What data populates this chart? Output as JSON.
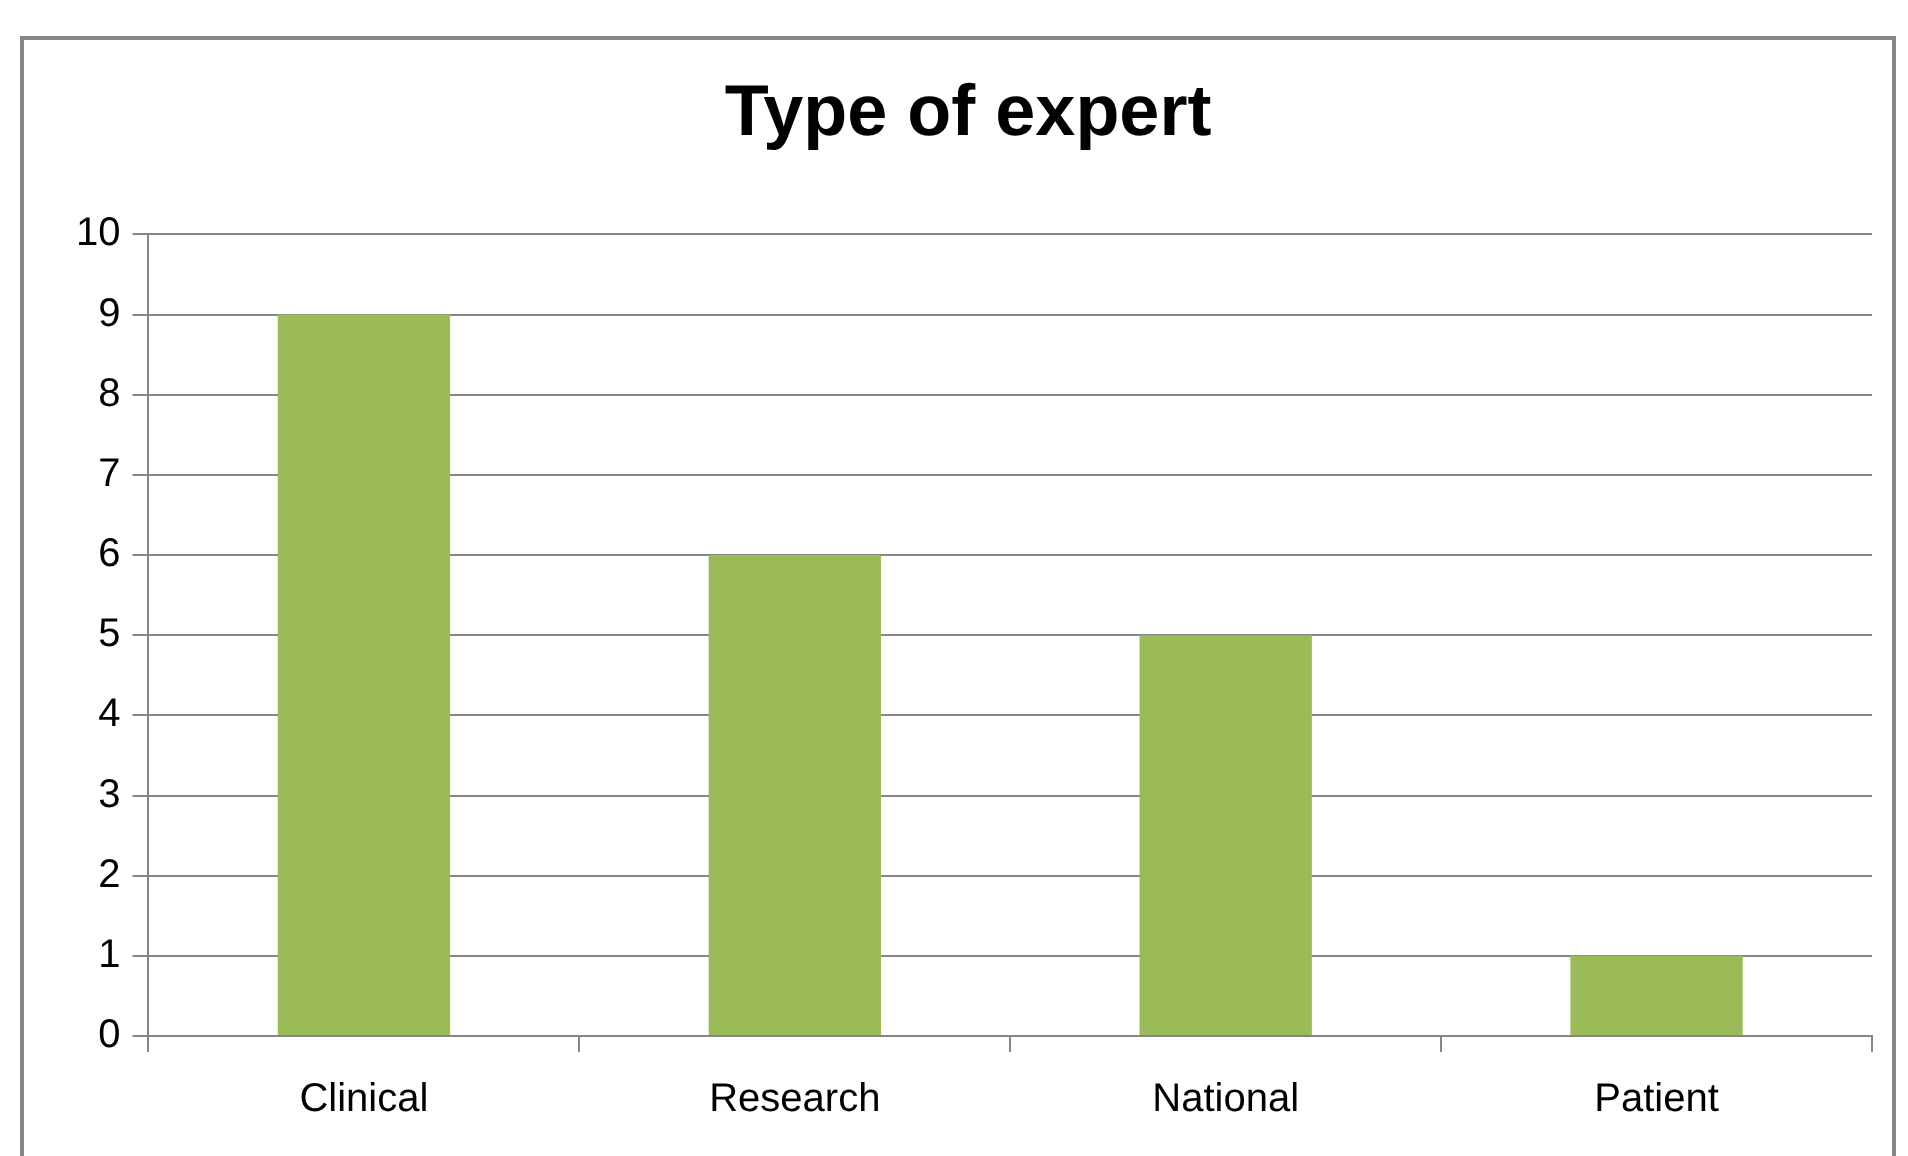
{
  "chart_data": {
    "type": "bar",
    "title": "Type of expert",
    "categories": [
      "Clinical",
      "Research",
      "National",
      "Patient"
    ],
    "values": [
      9,
      6,
      5,
      1
    ],
    "color": "#9bbb59",
    "ylim": [
      0,
      10
    ],
    "yticks": [
      0,
      1,
      2,
      3,
      4,
      5,
      6,
      7,
      8,
      9,
      10
    ],
    "grid": "y",
    "legend": false
  }
}
